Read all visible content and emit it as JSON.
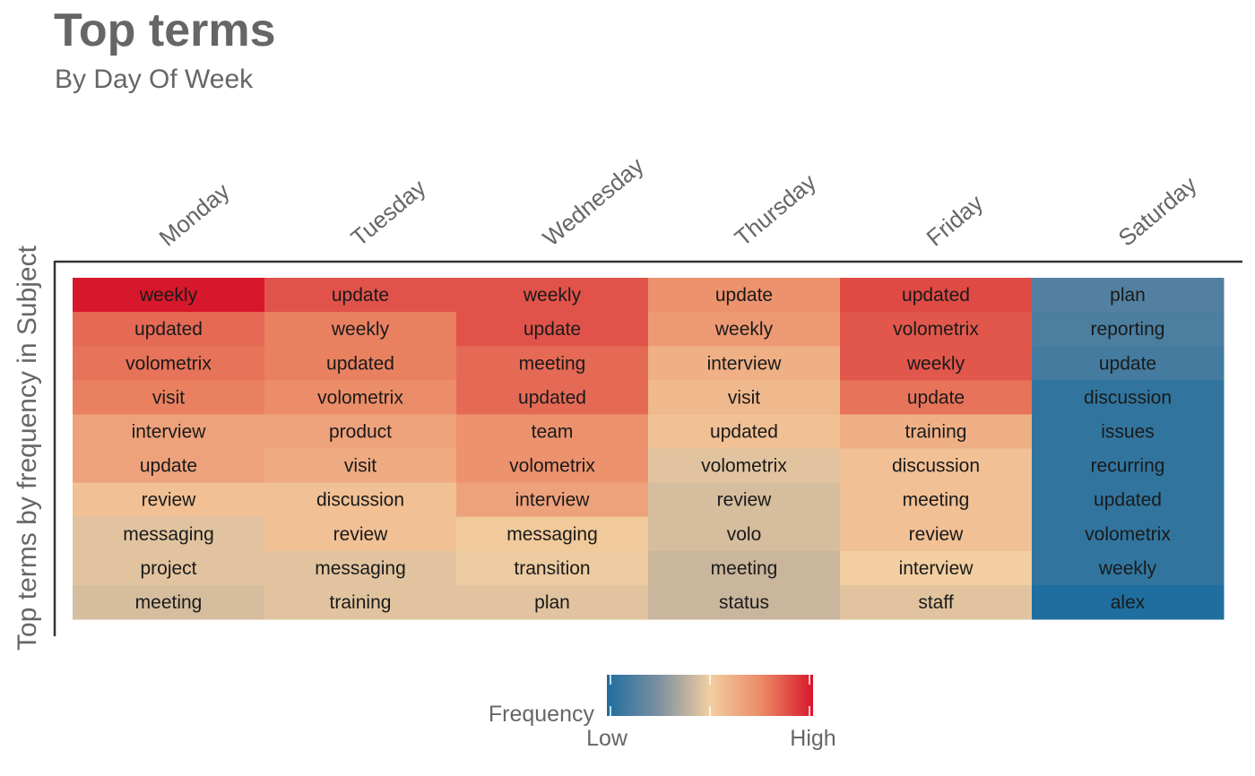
{
  "chart_data": {
    "type": "heatmap",
    "title": "Top terms",
    "subtitle": "By Day Of Week",
    "ylabel": "Top terms by frequency in Subject",
    "x_axis_position": "top",
    "grid": false,
    "columns": [
      {
        "day": "Monday",
        "terms": [
          "weekly",
          "updated",
          "volometrix",
          "visit",
          "interview",
          "update",
          "review",
          "messaging",
          "project",
          "meeting"
        ],
        "values": [
          1.0,
          0.82,
          0.8,
          0.77,
          0.66,
          0.66,
          0.55,
          0.47,
          0.47,
          0.45
        ]
      },
      {
        "day": "Tuesday",
        "terms": [
          "update",
          "weekly",
          "updated",
          "volometrix",
          "product",
          "visit",
          "discussion",
          "review",
          "messaging",
          "training"
        ],
        "values": [
          0.87,
          0.77,
          0.77,
          0.74,
          0.66,
          0.63,
          0.55,
          0.55,
          0.47,
          0.47
        ]
      },
      {
        "day": "Wednesday",
        "terms": [
          "weekly",
          "update",
          "meeting",
          "updated",
          "team",
          "volometrix",
          "interview",
          "messaging",
          "transition",
          "plan"
        ],
        "values": [
          0.87,
          0.87,
          0.82,
          0.82,
          0.72,
          0.72,
          0.66,
          0.52,
          0.49,
          0.47
        ]
      },
      {
        "day": "Thursday",
        "terms": [
          "update",
          "weekly",
          "interview",
          "visit",
          "updated",
          "volometrix",
          "review",
          "volo",
          "meeting",
          "status"
        ],
        "values": [
          0.72,
          0.69,
          0.61,
          0.58,
          0.55,
          0.47,
          0.45,
          0.45,
          0.43,
          0.43
        ]
      },
      {
        "day": "Friday",
        "terms": [
          "updated",
          "volometrix",
          "weekly",
          "update",
          "training",
          "discussion",
          "meeting",
          "review",
          "interview",
          "staff"
        ],
        "values": [
          0.89,
          0.86,
          0.86,
          0.8,
          0.61,
          0.55,
          0.55,
          0.55,
          0.5,
          0.47
        ]
      },
      {
        "day": "Saturday",
        "terms": [
          "plan",
          "reporting",
          "update",
          "discussion",
          "issues",
          "recurring",
          "updated",
          "volometrix",
          "weekly",
          "alex"
        ],
        "values": [
          0.14,
          0.12,
          0.1,
          0.05,
          0.05,
          0.05,
          0.05,
          0.05,
          0.05,
          0.0
        ]
      }
    ],
    "legend": {
      "title": "Frequency",
      "low_label": "Low",
      "high_label": "High",
      "placement": "bottom"
    },
    "colors": {
      "low": "#1F6E9F",
      "mid_gray": "#B9B0A6",
      "mid": "#F2CEA0",
      "high": "#D7172B",
      "text": "#666666",
      "axis_line": "#333333"
    }
  }
}
